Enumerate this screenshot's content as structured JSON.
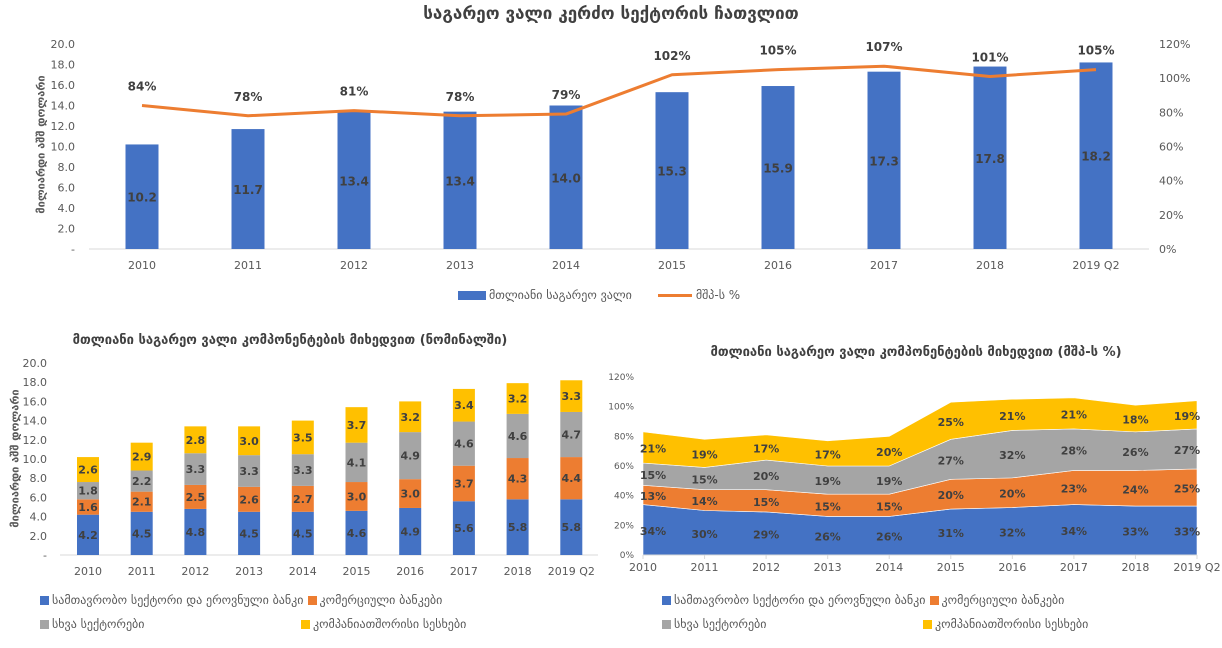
{
  "colors": {
    "blue": "#4472c4",
    "orange": "#ed7d31",
    "gray": "#a5a5a5",
    "yellow": "#ffc000",
    "axis": "#d9d9d9",
    "tick_text": "#595959",
    "label_text": "#404040"
  },
  "chart_data": [
    {
      "id": "top",
      "type": "bar+line",
      "title": "საგარეო ვალი კერძო სექტორის ჩათვლით",
      "ylabel": "მილიარდი აშშ დოლარი",
      "categories": [
        "2010",
        "2011",
        "2012",
        "2013",
        "2014",
        "2015",
        "2016",
        "2017",
        "2018",
        "2019 Q2"
      ],
      "ylim": [
        0,
        20
      ],
      "y_ticks": [
        "-",
        "2.0",
        "4.0",
        "6.0",
        "8.0",
        "10.0",
        "12.0",
        "14.0",
        "16.0",
        "18.0",
        "20.0"
      ],
      "y2lim": [
        0,
        120
      ],
      "y2_ticks": [
        "0%",
        "20%",
        "40%",
        "60%",
        "80%",
        "100%",
        "120%"
      ],
      "series": [
        {
          "name": "მთლიანი საგარეო ვალი",
          "type": "bar",
          "axis": "left",
          "values": [
            10.2,
            11.7,
            13.4,
            13.4,
            14.0,
            15.3,
            15.9,
            17.3,
            17.8,
            18.2
          ],
          "labels": [
            "10.2",
            "11.7",
            "13.4",
            "13.4",
            "14.0",
            "15.3",
            "15.9",
            "17.3",
            "17.8",
            "18.2"
          ]
        },
        {
          "name": "მშპ-ს %",
          "type": "line",
          "axis": "right",
          "values": [
            84,
            78,
            81,
            78,
            79,
            102,
            105,
            107,
            101,
            105
          ],
          "labels": [
            "84%",
            "78%",
            "81%",
            "78%",
            "79%",
            "102%",
            "105%",
            "107%",
            "101%",
            "105%"
          ]
        }
      ],
      "legend": [
        "მთლიანი საგარეო ვალი",
        "მშპ-ს %"
      ],
      "legend_position": "bottom",
      "grid": false
    },
    {
      "id": "bottom_left",
      "type": "stacked-bar",
      "title": "მთლიანი საგარეო ვალი კომპონენტების მიხედვით (ნომინალში)",
      "ylabel": "მილიარდი აშშ დოლარი",
      "categories": [
        "2010",
        "2011",
        "2012",
        "2013",
        "2014",
        "2015",
        "2016",
        "2017",
        "2018",
        "2019 Q2"
      ],
      "ylim": [
        0,
        20
      ],
      "y_ticks": [
        "-",
        "2.0",
        "4.0",
        "6.0",
        "8.0",
        "10.0",
        "12.0",
        "14.0",
        "16.0",
        "18.0",
        "20.0"
      ],
      "series": [
        {
          "name": "სამთავრობო სექტორი და ეროვნული ბანკი",
          "color": "blue",
          "values": [
            4.2,
            4.5,
            4.8,
            4.5,
            4.5,
            4.6,
            4.9,
            5.6,
            5.8,
            5.8
          ]
        },
        {
          "name": "კომერციული ბანკები",
          "color": "orange",
          "values": [
            1.6,
            2.1,
            2.5,
            2.6,
            2.7,
            3.0,
            3.0,
            3.7,
            4.3,
            4.4
          ]
        },
        {
          "name": "სხვა სექტორები",
          "color": "gray",
          "values": [
            1.8,
            2.2,
            3.3,
            3.3,
            3.3,
            4.1,
            4.9,
            4.6,
            4.6,
            4.7
          ]
        },
        {
          "name": "კომპანიათშორისი სესხები",
          "color": "yellow",
          "values": [
            2.6,
            2.9,
            2.8,
            3.0,
            3.5,
            3.7,
            3.2,
            3.4,
            3.2,
            3.3
          ]
        }
      ],
      "legend_position": "bottom",
      "grid": false
    },
    {
      "id": "bottom_right",
      "type": "area",
      "stacked": true,
      "title": "მთლიანი საგარეო ვალი კომპონენტების მიხედვით (მშპ-ს %)",
      "categories": [
        "2010",
        "2011",
        "2012",
        "2013",
        "2014",
        "2015",
        "2016",
        "2017",
        "2018",
        "2019 Q2"
      ],
      "ylim": [
        0,
        120
      ],
      "y_ticks": [
        "0%",
        "20%",
        "40%",
        "60%",
        "80%",
        "100%",
        "120%"
      ],
      "series": [
        {
          "name": "სამთავრობო სექტორი და ეროვნული ბანკი",
          "color": "blue",
          "values": [
            34,
            30,
            29,
            26,
            26,
            31,
            32,
            34,
            33,
            33
          ]
        },
        {
          "name": "კომერციული ბანკები",
          "color": "orange",
          "values": [
            13,
            14,
            15,
            15,
            15,
            20,
            20,
            23,
            24,
            25
          ]
        },
        {
          "name": "სხვა სექტორები",
          "color": "gray",
          "values": [
            15,
            15,
            20,
            19,
            19,
            27,
            32,
            28,
            26,
            27
          ]
        },
        {
          "name": "კომპანიათშორისი სესხები",
          "color": "yellow",
          "values": [
            21,
            19,
            17,
            17,
            20,
            25,
            21,
            21,
            18,
            19
          ]
        }
      ],
      "legend_position": "bottom",
      "grid": false
    }
  ]
}
